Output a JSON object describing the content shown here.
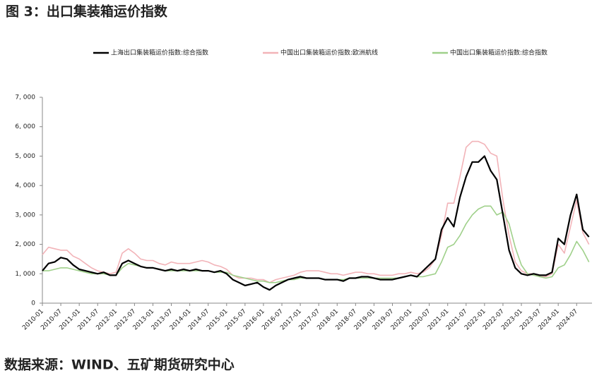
{
  "chart_data": {
    "type": "line",
    "title": "图 3：出口集装箱运价指数",
    "source": "数据来源：WIND、五矿期货研究中心",
    "x": [
      "2010-01",
      "2010-03",
      "2010-05",
      "2010-07",
      "2010-09",
      "2010-11",
      "2011-01",
      "2011-03",
      "2011-05",
      "2011-07",
      "2011-09",
      "2011-11",
      "2012-01",
      "2012-03",
      "2012-05",
      "2012-07",
      "2012-09",
      "2012-11",
      "2013-01",
      "2013-03",
      "2013-05",
      "2013-07",
      "2013-09",
      "2013-11",
      "2014-01",
      "2014-03",
      "2014-05",
      "2014-07",
      "2014-09",
      "2014-11",
      "2015-01",
      "2015-03",
      "2015-05",
      "2015-07",
      "2015-09",
      "2015-11",
      "2016-01",
      "2016-03",
      "2016-05",
      "2016-07",
      "2016-09",
      "2016-11",
      "2017-01",
      "2017-03",
      "2017-05",
      "2017-07",
      "2017-09",
      "2017-11",
      "2018-01",
      "2018-03",
      "2018-05",
      "2018-07",
      "2018-09",
      "2018-11",
      "2019-01",
      "2019-03",
      "2019-05",
      "2019-07",
      "2019-09",
      "2019-11",
      "2020-01",
      "2020-03",
      "2020-05",
      "2020-07",
      "2020-09",
      "2020-11",
      "2021-01",
      "2021-03",
      "2021-05",
      "2021-07",
      "2021-09",
      "2021-11",
      "2022-01",
      "2022-03",
      "2022-05",
      "2022-07",
      "2022-09",
      "2022-11",
      "2023-01",
      "2023-03",
      "2023-05",
      "2023-07",
      "2023-09",
      "2023-11",
      "2024-01",
      "2024-03",
      "2024-05",
      "2024-07",
      "2024-09",
      "2024-11"
    ],
    "series": [
      {
        "name": "上海出口集装箱运价指数:综合指数",
        "color": "#000000",
        "width": 2.2,
        "values": [
          1100,
          1350,
          1400,
          1550,
          1500,
          1300,
          1150,
          1100,
          1050,
          1000,
          1050,
          950,
          950,
          1350,
          1450,
          1350,
          1250,
          1200,
          1200,
          1150,
          1100,
          1150,
          1100,
          1150,
          1100,
          1150,
          1100,
          1100,
          1050,
          1100,
          1000,
          800,
          700,
          600,
          650,
          700,
          550,
          450,
          600,
          700,
          800,
          850,
          900,
          850,
          850,
          850,
          800,
          800,
          800,
          750,
          850,
          850,
          900,
          900,
          850,
          800,
          800,
          800,
          850,
          900,
          950,
          900,
          1100,
          1300,
          1500,
          2500,
          2900,
          2600,
          3600,
          4300,
          4800,
          4800,
          5000,
          4500,
          4200,
          3000,
          1800,
          1200,
          1000,
          950,
          1000,
          950,
          950,
          1050,
          2200,
          2000,
          3000,
          3700,
          2500,
          2250
        ]
      },
      {
        "name": "中国出口集装箱运价指数:欧洲航线",
        "color": "#f2b3b8",
        "width": 1.6,
        "values": [
          1650,
          1900,
          1850,
          1800,
          1800,
          1600,
          1500,
          1350,
          1200,
          1100,
          1050,
          1000,
          1050,
          1700,
          1850,
          1700,
          1500,
          1450,
          1450,
          1350,
          1300,
          1400,
          1350,
          1350,
          1350,
          1400,
          1450,
          1400,
          1300,
          1250,
          1150,
          950,
          850,
          850,
          850,
          800,
          800,
          700,
          800,
          850,
          900,
          950,
          1050,
          1100,
          1100,
          1100,
          1050,
          1000,
          1000,
          950,
          1000,
          1050,
          1050,
          1000,
          1000,
          950,
          950,
          950,
          1000,
          1000,
          1050,
          1000,
          1050,
          1200,
          1500,
          2300,
          3400,
          3400,
          4300,
          5300,
          5500,
          5500,
          5400,
          5100,
          5000,
          3500,
          2300,
          1400,
          1100,
          1000,
          1000,
          900,
          900,
          1000,
          2000,
          1700,
          2600,
          3500,
          2400,
          2000
        ]
      },
      {
        "name": "中国出口集装箱运价指数:综合指数",
        "color": "#9fd08a",
        "width": 1.6,
        "values": [
          1100,
          1100,
          1150,
          1200,
          1200,
          1150,
          1100,
          1050,
          1000,
          1000,
          1000,
          950,
          950,
          1200,
          1350,
          1300,
          1250,
          1200,
          1200,
          1150,
          1100,
          1100,
          1100,
          1100,
          1100,
          1100,
          1100,
          1100,
          1050,
          1050,
          1050,
          950,
          900,
          850,
          800,
          750,
          750,
          700,
          700,
          750,
          800,
          800,
          850,
          850,
          850,
          850,
          800,
          800,
          800,
          800,
          850,
          850,
          850,
          850,
          850,
          850,
          850,
          850,
          850,
          900,
          950,
          900,
          900,
          950,
          1000,
          1400,
          1900,
          2000,
          2300,
          2700,
          3000,
          3200,
          3300,
          3300,
          3000,
          3100,
          2700,
          1900,
          1300,
          1000,
          950,
          900,
          850,
          900,
          1200,
          1300,
          1650,
          2100,
          1800,
          1400
        ]
      }
    ],
    "xlim": [
      "2010-01",
      "2024-12"
    ],
    "xticks": [
      "2010-01",
      "2010-07",
      "2011-01",
      "2011-07",
      "2012-01",
      "2012-07",
      "2013-01",
      "2013-07",
      "2014-01",
      "2014-07",
      "2015-01",
      "2015-07",
      "2016-01",
      "2016-07",
      "2017-01",
      "2017-07",
      "2018-01",
      "2018-07",
      "2019-01",
      "2019-07",
      "2020-01",
      "2020-07",
      "2021-01",
      "2021-07",
      "2022-01",
      "2022-07",
      "2023-01",
      "2023-07",
      "2024-01",
      "2024-07"
    ],
    "ylim": [
      0,
      7000
    ],
    "yticks": [
      0,
      {
        "value": 1000,
        "label": "1, 000"
      },
      {
        "value": 2000,
        "label": "2, 000"
      },
      {
        "value": 3000,
        "label": "3, 000"
      },
      {
        "value": 4000,
        "label": "4, 000"
      },
      {
        "value": 5000,
        "label": "5, 000"
      },
      {
        "value": 6000,
        "label": "6, 000"
      },
      {
        "value": 7000,
        "label": "7, 000"
      }
    ]
  }
}
